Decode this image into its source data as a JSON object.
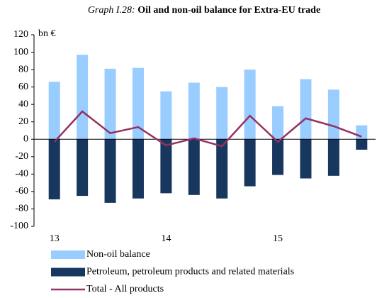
{
  "chart_data": {
    "type": "bar_line",
    "title_label": "Graph I.28:",
    "title": "Oil and non-oil balance for Extra-EU trade",
    "y_label": "bn €",
    "categories": [
      "13",
      null,
      null,
      null,
      "14",
      null,
      null,
      null,
      "15",
      null,
      null,
      null
    ],
    "series": [
      {
        "name": "Non-oil balance",
        "color": "#99ccff",
        "kind": "bar",
        "values": [
          66,
          97,
          81,
          82,
          55,
          65,
          60,
          80,
          38,
          69,
          57,
          16
        ]
      },
      {
        "name": "Petroleum, petroleum products and related materials",
        "color": "#17375e",
        "kind": "bar",
        "values": [
          -69,
          -65,
          -73,
          -68,
          -62,
          -64,
          -68,
          -54,
          -41,
          -45,
          -42,
          -12
        ]
      },
      {
        "name": "Total - All products",
        "color": "#953163",
        "kind": "line",
        "values": [
          -3,
          32,
          7,
          14,
          -7,
          1,
          -8,
          27,
          -3,
          24,
          15,
          3
        ]
      }
    ],
    "ylim": [
      -100,
      120
    ],
    "yticks": [
      -100,
      -80,
      -60,
      -40,
      -20,
      0,
      20,
      40,
      60,
      80,
      100,
      120
    ]
  }
}
